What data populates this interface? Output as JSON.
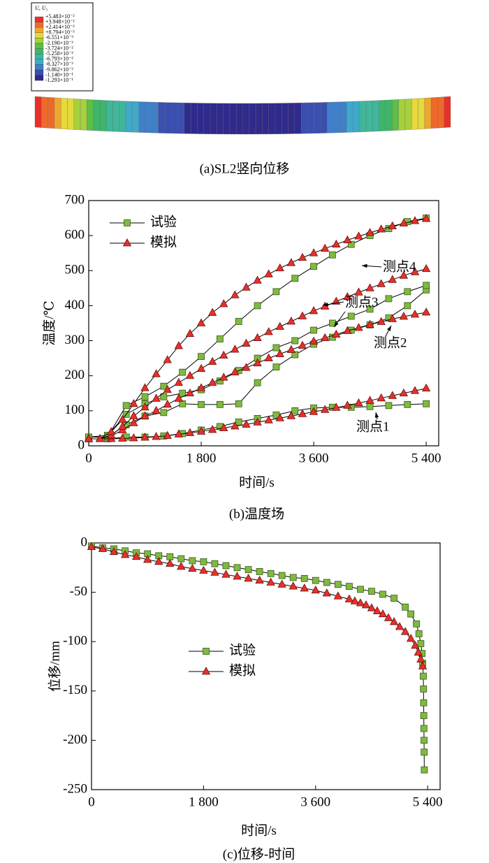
{
  "chart_data": [
    {
      "type": "contour",
      "title": "U, U₃",
      "legend_labels": [
        "+5.483×10⁻²",
        "+3.948×10⁻²",
        "+2.414×10⁻²",
        "+8.794×10⁻³",
        "-6.551×10⁻³",
        "-2.190×10⁻²",
        "-3.724×10⁻²",
        "-5.258×10⁻²",
        "-6.793×10⁻²",
        "-8.327×10⁻²",
        "-9.862×10⁻²",
        "-1.140×10⁻¹",
        "-1.293×10⁻¹"
      ],
      "colors": [
        "#e8302a",
        "#ec6a2c",
        "#f0a52e",
        "#e6d93a",
        "#a6d13c",
        "#5cbf46",
        "#3fb56a",
        "#3fb79a",
        "#3fa9cc",
        "#3f80c8",
        "#3a4fb0",
        "#2f2a8c"
      ],
      "caption": "(a)SL2竖向位移"
    },
    {
      "type": "line",
      "caption": "(b)温度场",
      "x_label": "时间/s",
      "y_label": "温度/℃",
      "xlim": [
        0,
        5600
      ],
      "xticks": [
        0,
        {
          "value": 1800,
          "label": "1 800"
        },
        {
          "value": 3600,
          "label": "3 600"
        },
        {
          "value": 5400,
          "label": "5 400"
        }
      ],
      "ylim": [
        0,
        700
      ],
      "yticks": [
        0,
        100,
        200,
        300,
        400,
        500,
        600,
        700
      ],
      "legend": "upper left",
      "annotations": [
        "测点4",
        "测点3",
        "测点2",
        "测点1"
      ],
      "series": [
        {
          "name": "试验",
          "color": "#7fba3f",
          "marker": "square",
          "x": [
            0,
            300,
            600,
            900,
            1200,
            1500,
            1800,
            2100,
            2400,
            2700,
            3000,
            3300,
            3600,
            3900,
            4200,
            4500,
            4800,
            5100,
            5400
          ],
          "curves": [
            {
              "values": [
                20,
                20,
                25,
                25,
                28,
                35,
                45,
                55,
                68,
                78,
                88,
                100,
                108,
                110,
                110,
                112,
                115,
                118,
                120
              ]
            },
            {
              "values": [
                25,
                25,
                60,
                85,
                95,
                120,
                118,
                118,
                120,
                180,
                225,
                260,
                290,
                310,
                330,
                345,
                365,
                400,
                445
              ]
            },
            {
              "values": [
                25,
                30,
                90,
                120,
                140,
                150,
                160,
                185,
                215,
                250,
                280,
                300,
                330,
                350,
                370,
                390,
                420,
                440,
                458
              ]
            },
            {
              "values": [
                25,
                25,
                115,
                140,
                170,
                210,
                255,
                305,
                355,
                400,
                440,
                478,
                512,
                545,
                575,
                600,
                620,
                640,
                650
              ]
            }
          ]
        },
        {
          "name": "模拟",
          "color": "#e8302a",
          "marker": "triangle",
          "x": [
            0,
            180,
            360,
            540,
            720,
            900,
            1080,
            1260,
            1440,
            1620,
            1800,
            1980,
            2160,
            2340,
            2520,
            2700,
            2880,
            3060,
            3240,
            3420,
            3600,
            3780,
            3960,
            4140,
            4320,
            4500,
            4680,
            4860,
            5040,
            5220,
            5400
          ],
          "curves": [
            {
              "values": [
                20,
                20,
                20,
                21,
                22,
                24,
                26,
                29,
                33,
                37,
                41,
                46,
                51,
                56,
                61,
                67,
                73,
                79,
                85,
                91,
                97,
                103,
                109,
                115,
                122,
                129,
                136,
                143,
                150,
                157,
                164
              ]
            },
            {
              "values": [
                20,
                20,
                28,
                45,
                65,
                85,
                100,
                118,
                135,
                150,
                165,
                180,
                195,
                210,
                223,
                236,
                250,
                262,
                274,
                286,
                298,
                308,
                318,
                328,
                337,
                346,
                354,
                362,
                369,
                375,
                381
              ]
            },
            {
              "values": [
                20,
                20,
                30,
                55,
                85,
                110,
                135,
                160,
                180,
                200,
                220,
                240,
                258,
                275,
                292,
                308,
                325,
                340,
                355,
                370,
                385,
                398,
                412,
                425,
                438,
                450,
                462,
                474,
                486,
                496,
                505
              ]
            },
            {
              "values": [
                20,
                20,
                40,
                75,
                120,
                165,
                205,
                245,
                285,
                320,
                350,
                380,
                405,
                430,
                452,
                472,
                490,
                507,
                522,
                537,
                550,
                563,
                575,
                587,
                598,
                608,
                618,
                627,
                635,
                642,
                648
              ]
            }
          ]
        }
      ]
    },
    {
      "type": "line",
      "caption": "(c)位移-时间",
      "x_label": "时间/s",
      "y_label": "位移/mm",
      "xlim": [
        0,
        5600
      ],
      "xticks": [
        0,
        {
          "value": 1800,
          "label": "1 800"
        },
        {
          "value": 3600,
          "label": "3 600"
        },
        {
          "value": 5400,
          "label": "5 400"
        }
      ],
      "ylim": [
        -250,
        0
      ],
      "yticks": [
        -250,
        -200,
        -150,
        -100,
        -50,
        0
      ],
      "legend": "center left",
      "series": [
        {
          "name": "试验",
          "color": "#7fba3f",
          "marker": "square",
          "x": [
            0,
            180,
            360,
            540,
            720,
            900,
            1080,
            1260,
            1440,
            1620,
            1800,
            1980,
            2160,
            2340,
            2520,
            2700,
            2880,
            3060,
            3240,
            3420,
            3600,
            3780,
            3960,
            4140,
            4320,
            4500,
            4680,
            4860,
            5040,
            5130,
            5220,
            5260,
            5290,
            5310,
            5320,
            5330,
            5333,
            5336,
            5338,
            5340,
            5342,
            5344,
            5346
          ],
          "values": [
            -3,
            -5,
            -6,
            -8,
            -10,
            -11,
            -13,
            -14,
            -16,
            -18,
            -19,
            -21,
            -23,
            -25,
            -27,
            -29,
            -31,
            -33,
            -35,
            -36,
            -38,
            -40,
            -42,
            -44,
            -47,
            -49,
            -52,
            -56,
            -65,
            -72,
            -82,
            -92,
            -102,
            -112,
            -122,
            -135,
            -148,
            -162,
            -175,
            -188,
            -200,
            -212,
            -230
          ]
        },
        {
          "name": "模拟",
          "color": "#e8302a",
          "marker": "triangle",
          "x": [
            0,
            180,
            360,
            540,
            720,
            900,
            1080,
            1260,
            1440,
            1620,
            1800,
            1980,
            2160,
            2340,
            2520,
            2700,
            2880,
            3060,
            3240,
            3420,
            3600,
            3780,
            3960,
            4140,
            4230,
            4320,
            4410,
            4500,
            4590,
            4680,
            4770,
            4860,
            4950,
            5040,
            5130,
            5200,
            5250,
            5290,
            5320
          ],
          "values": [
            -4,
            -6,
            -9,
            -12,
            -14,
            -17,
            -19,
            -21,
            -24,
            -26,
            -28,
            -30,
            -32,
            -34,
            -36,
            -38,
            -40,
            -42,
            -44,
            -46,
            -48,
            -51,
            -54,
            -57,
            -59,
            -61,
            -63,
            -66,
            -69,
            -72,
            -76,
            -80,
            -85,
            -90,
            -97,
            -104,
            -111,
            -118,
            -125
          ]
        }
      ]
    }
  ]
}
